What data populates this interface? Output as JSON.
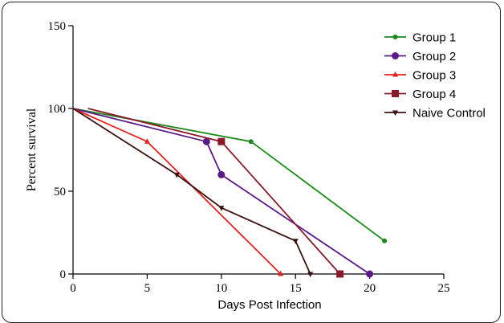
{
  "chart_data": {
    "type": "line",
    "title": "",
    "xlabel": "Days Post Infection",
    "ylabel": "Percent survival",
    "xlim": [
      0,
      25
    ],
    "ylim": [
      0,
      150
    ],
    "xticks": [
      0,
      5,
      10,
      15,
      20,
      25
    ],
    "yticks": [
      0,
      50,
      100,
      150
    ],
    "grid": false,
    "legend_position": "top-right",
    "series": [
      {
        "name": "Group 1",
        "color": "#1a8a1a",
        "marker": "circle-small",
        "x": [
          0,
          12,
          21
        ],
        "y": [
          100,
          80,
          20
        ]
      },
      {
        "name": "Group 2",
        "color": "#5a1a8a",
        "marker": "circle",
        "x": [
          0,
          9,
          10,
          20
        ],
        "y": [
          100,
          80,
          60,
          0
        ]
      },
      {
        "name": "Group 3",
        "color": "#e8201a",
        "marker": "triangle-up",
        "x": [
          0,
          5,
          14
        ],
        "y": [
          100,
          80,
          0
        ]
      },
      {
        "name": "Group 4",
        "color": "#8a1a2a",
        "marker": "square",
        "x": [
          1,
          10,
          18
        ],
        "y": [
          100,
          80,
          0
        ]
      },
      {
        "name": "Naive Control",
        "color": "#3a1010",
        "marker": "triangle-down",
        "x": [
          0,
          7,
          10,
          15,
          16
        ],
        "y": [
          100,
          60,
          40,
          20,
          0
        ]
      }
    ]
  }
}
